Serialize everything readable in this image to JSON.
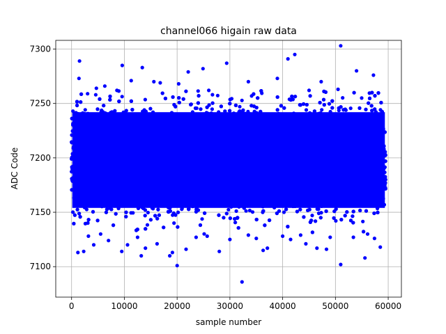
{
  "chart_data": {
    "type": "scatter",
    "title": "channel066 higain raw data",
    "xlabel": "sample number",
    "ylabel": "ADC Code",
    "xlim": [
      -3000,
      62500
    ],
    "ylim": [
      7072,
      7308
    ],
    "xticks": [
      0,
      10000,
      20000,
      30000,
      40000,
      50000,
      60000
    ],
    "xtick_labels": [
      "0",
      "10000",
      "20000",
      "30000",
      "40000",
      "50000",
      "60000"
    ],
    "yticks": [
      7100,
      7150,
      7200,
      7250,
      7300
    ],
    "ytick_labels": [
      "7100",
      "7150",
      "7200",
      "7250",
      "7300"
    ],
    "grid": true,
    "legend": "none",
    "marker_color": "#0000ff",
    "series": [
      {
        "n_samples": 59500,
        "core_band": {
          "x_range": [
            0,
            59500
          ],
          "y_range": [
            7146,
            7250
          ]
        },
        "outliers": [
          [
            1500,
            7289
          ],
          [
            1400,
            7273
          ],
          [
            9600,
            7285
          ],
          [
            13400,
            7283
          ],
          [
            24900,
            7282
          ],
          [
            22100,
            7279
          ],
          [
            29400,
            7287
          ],
          [
            41000,
            7291
          ],
          [
            42300,
            7295
          ],
          [
            51000,
            7303
          ],
          [
            54000,
            7280
          ],
          [
            57200,
            7276
          ],
          [
            6300,
            7266
          ],
          [
            11300,
            7271
          ],
          [
            15600,
            7270
          ],
          [
            16800,
            7269
          ],
          [
            20300,
            7268
          ],
          [
            33500,
            7270
          ],
          [
            39000,
            7273
          ],
          [
            47300,
            7270
          ],
          [
            4700,
            7264
          ],
          [
            8600,
            7262
          ],
          [
            26000,
            7262
          ],
          [
            45000,
            7262
          ],
          [
            50500,
            7263
          ],
          [
            1200,
            7113
          ],
          [
            2300,
            7114
          ],
          [
            9500,
            7114
          ],
          [
            13200,
            7110
          ],
          [
            14000,
            7117
          ],
          [
            18600,
            7110
          ],
          [
            19100,
            7113
          ],
          [
            20000,
            7101
          ],
          [
            21700,
            7116
          ],
          [
            28000,
            7114
          ],
          [
            32300,
            7086
          ],
          [
            36300,
            7115
          ],
          [
            37100,
            7117
          ],
          [
            44400,
            7121
          ],
          [
            48300,
            7116
          ],
          [
            51000,
            7102
          ],
          [
            55600,
            7108
          ],
          [
            58500,
            7118
          ],
          [
            4200,
            7120
          ],
          [
            7000,
            7124
          ],
          [
            10600,
            7120
          ],
          [
            16200,
            7121
          ],
          [
            23600,
            7127
          ],
          [
            33500,
            7129
          ],
          [
            41500,
            7125
          ],
          [
            46500,
            7117
          ],
          [
            53400,
            7127
          ],
          [
            57400,
            7126
          ],
          [
            3200,
            7128
          ],
          [
            5500,
            7130
          ],
          [
            12500,
            7127
          ],
          [
            25700,
            7128
          ],
          [
            30000,
            7125
          ],
          [
            35000,
            7126
          ],
          [
            40000,
            7128
          ],
          [
            43400,
            7129
          ],
          [
            49000,
            7127
          ],
          [
            56100,
            7130
          ]
        ]
      }
    ]
  }
}
